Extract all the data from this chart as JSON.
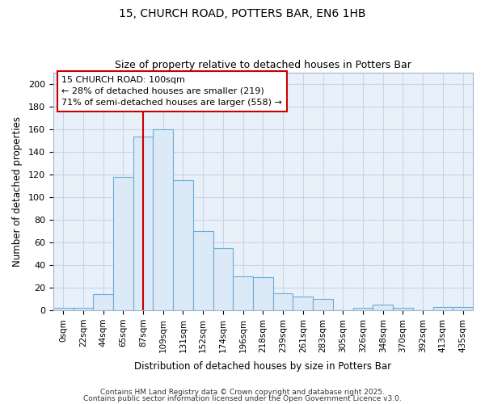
{
  "title1": "15, CHURCH ROAD, POTTERS BAR, EN6 1HB",
  "title2": "Size of property relative to detached houses in Potters Bar",
  "xlabel": "Distribution of detached houses by size in Potters Bar",
  "ylabel": "Number of detached properties",
  "bin_labels": [
    "0sqm",
    "22sqm",
    "44sqm",
    "65sqm",
    "87sqm",
    "109sqm",
    "131sqm",
    "152sqm",
    "174sqm",
    "196sqm",
    "218sqm",
    "239sqm",
    "261sqm",
    "283sqm",
    "305sqm",
    "326sqm",
    "348sqm",
    "370sqm",
    "392sqm",
    "413sqm",
    "435sqm"
  ],
  "bar_values": [
    2,
    2,
    14,
    118,
    153,
    160,
    115,
    70,
    55,
    30,
    29,
    15,
    12,
    10,
    0,
    2,
    5,
    2,
    0,
    3,
    3
  ],
  "bar_color": "#dce9f7",
  "bar_edge_color": "#6baed6",
  "vline_x": 4.0,
  "vline_color": "#cc0000",
  "annotation_text": "15 CHURCH ROAD: 100sqm\n← 28% of detached houses are smaller (219)\n71% of semi-detached houses are larger (558) →",
  "annotation_box_color": "#ffffff",
  "annotation_box_edge": "#cc0000",
  "ylim": [
    0,
    210
  ],
  "yticks": [
    0,
    20,
    40,
    60,
    80,
    100,
    120,
    140,
    160,
    180,
    200
  ],
  "footer1": "Contains HM Land Registry data © Crown copyright and database right 2025.",
  "footer2": "Contains public sector information licensed under the Open Government Licence v3.0.",
  "background_color": "#ffffff",
  "plot_bg_color": "#e8f0fa",
  "grid_color": "#c8d4e8"
}
